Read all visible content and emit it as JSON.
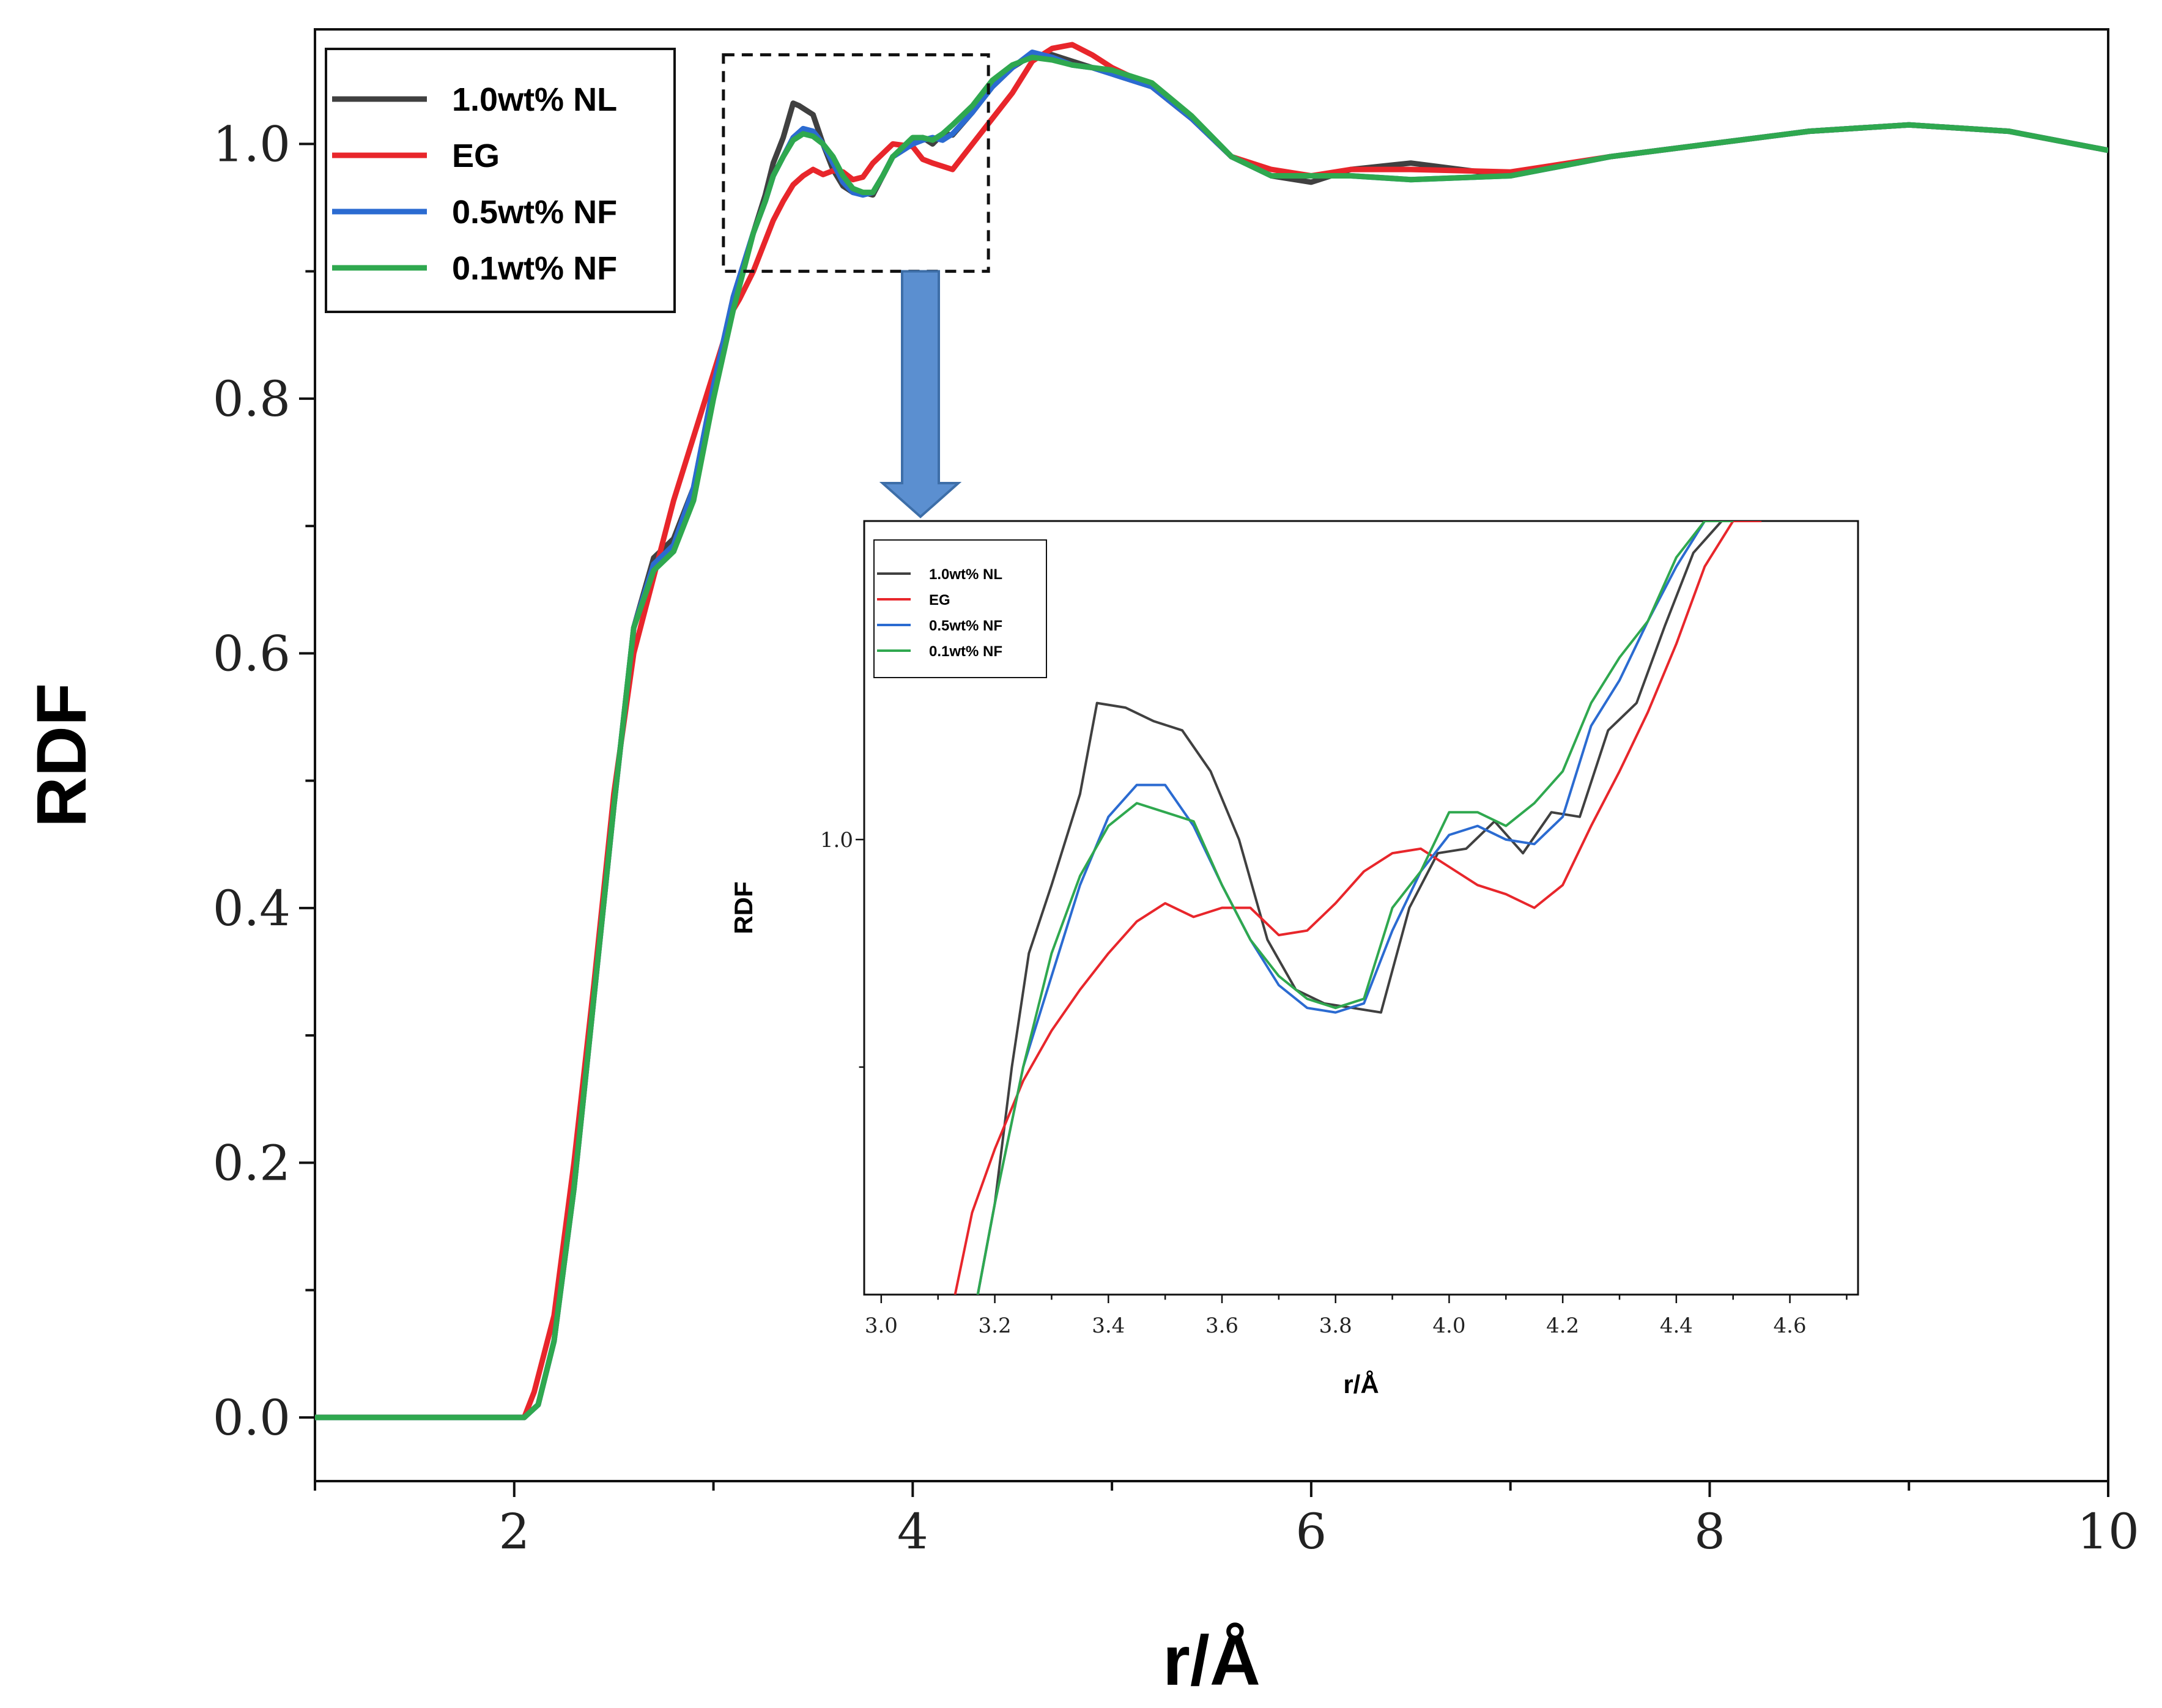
{
  "chart_data": [
    {
      "type": "line",
      "name": "main",
      "xlabel": "r/Å",
      "ylabel": "RDF",
      "xlim": [
        1,
        10
      ],
      "ylim": [
        -0.05,
        1.09
      ],
      "xticks": [
        "2",
        "4",
        "6",
        "8",
        "10"
      ],
      "yticks": [
        "0.0",
        "0.2",
        "0.4",
        "0.6",
        "0.8",
        "1.0"
      ],
      "legend_position": "top-left",
      "zoom_box": {
        "x": [
          3.05,
          4.38
        ],
        "y": [
          0.9,
          1.07
        ]
      },
      "series": [
        {
          "name": "1.0wt% NL",
          "color": "#404040",
          "x": [
            1.0,
            2.0,
            2.05,
            2.12,
            2.2,
            2.3,
            2.4,
            2.5,
            2.6,
            2.7,
            2.8,
            2.9,
            3.0,
            3.1,
            3.2,
            3.26,
            3.3,
            3.35,
            3.4,
            3.43,
            3.5,
            3.55,
            3.6,
            3.65,
            3.7,
            3.75,
            3.8,
            3.85,
            3.9,
            4.0,
            4.05,
            4.1,
            4.15,
            4.2,
            4.3,
            4.4,
            4.5,
            4.6,
            4.7,
            4.8,
            4.9,
            5.0,
            5.2,
            5.4,
            5.6,
            5.8,
            6.0,
            6.2,
            6.5,
            7.0,
            7.5,
            8.0,
            8.5,
            9.0,
            9.5,
            10.0
          ],
          "y": [
            0.0,
            0.0,
            0.0,
            0.01,
            0.06,
            0.18,
            0.33,
            0.48,
            0.62,
            0.675,
            0.69,
            0.73,
            0.81,
            0.88,
            0.93,
            0.96,
            0.985,
            1.005,
            1.032,
            1.03,
            1.023,
            1.0,
            0.98,
            0.967,
            0.962,
            0.962,
            0.96,
            0.975,
            0.99,
            1.0,
            1.005,
            1.0,
            1.008,
            1.007,
            1.025,
            1.045,
            1.06,
            1.07,
            1.07,
            1.065,
            1.06,
            1.055,
            1.045,
            1.02,
            0.99,
            0.975,
            0.97,
            0.98,
            0.985,
            0.975,
            0.99,
            1.0,
            1.01,
            1.015,
            1.01,
            0.995
          ]
        },
        {
          "name": "EG",
          "color": "#e8262b",
          "x": [
            1.0,
            2.0,
            2.05,
            2.1,
            2.2,
            2.3,
            2.4,
            2.5,
            2.6,
            2.7,
            2.8,
            2.9,
            3.0,
            3.1,
            3.13,
            3.2,
            3.25,
            3.3,
            3.35,
            3.4,
            3.45,
            3.5,
            3.55,
            3.6,
            3.65,
            3.7,
            3.75,
            3.8,
            3.9,
            4.0,
            4.05,
            4.1,
            4.2,
            4.25,
            4.3,
            4.4,
            4.5,
            4.6,
            4.7,
            4.8,
            4.9,
            5.0,
            5.2,
            5.4,
            5.6,
            5.8,
            6.0,
            6.2,
            6.5,
            7.0,
            7.5,
            8.0,
            8.5,
            9.0,
            9.5,
            10.0
          ],
          "y": [
            0.0,
            0.0,
            0.0,
            0.02,
            0.08,
            0.2,
            0.34,
            0.49,
            0.6,
            0.66,
            0.72,
            0.77,
            0.82,
            0.87,
            0.878,
            0.9,
            0.92,
            0.94,
            0.955,
            0.968,
            0.975,
            0.98,
            0.976,
            0.979,
            0.978,
            0.972,
            0.974,
            0.985,
            1.0,
            0.998,
            0.988,
            0.985,
            0.98,
            0.99,
            1.0,
            1.02,
            1.04,
            1.065,
            1.075,
            1.078,
            1.07,
            1.06,
            1.045,
            1.02,
            0.99,
            0.98,
            0.975,
            0.98,
            0.98,
            0.978,
            0.99,
            1.0,
            1.01,
            1.015,
            1.01,
            0.995
          ]
        },
        {
          "name": "0.5wt% NF",
          "color": "#2b6bd1",
          "x": [
            1.0,
            2.0,
            2.05,
            2.12,
            2.2,
            2.3,
            2.4,
            2.5,
            2.6,
            2.7,
            2.8,
            2.9,
            3.0,
            3.1,
            3.2,
            3.26,
            3.3,
            3.35,
            3.4,
            3.45,
            3.5,
            3.55,
            3.6,
            3.65,
            3.7,
            3.75,
            3.8,
            3.85,
            3.9,
            4.0,
            4.05,
            4.1,
            4.15,
            4.2,
            4.3,
            4.4,
            4.5,
            4.6,
            4.7,
            4.8,
            4.9,
            5.0,
            5.2,
            5.4,
            5.6,
            5.8,
            6.0,
            6.2,
            6.5,
            7.0,
            7.5,
            8.0,
            8.5,
            9.0,
            9.5,
            10.0
          ],
          "y": [
            0.0,
            0.0,
            0.0,
            0.01,
            0.06,
            0.18,
            0.33,
            0.48,
            0.62,
            0.67,
            0.685,
            0.73,
            0.81,
            0.88,
            0.93,
            0.955,
            0.975,
            0.99,
            1.005,
            1.012,
            1.01,
            1.0,
            0.985,
            0.97,
            0.962,
            0.96,
            0.962,
            0.975,
            0.99,
            1.0,
            1.003,
            1.005,
            1.003,
            1.008,
            1.025,
            1.045,
            1.06,
            1.072,
            1.068,
            1.062,
            1.06,
            1.055,
            1.045,
            1.02,
            0.99,
            0.975,
            0.975,
            0.975,
            0.972,
            0.975,
            0.99,
            1.0,
            1.01,
            1.015,
            1.01,
            0.995
          ]
        },
        {
          "name": "0.1wt% NF",
          "color": "#2fa84f",
          "x": [
            1.0,
            2.0,
            2.05,
            2.12,
            2.2,
            2.3,
            2.4,
            2.5,
            2.6,
            2.7,
            2.8,
            2.9,
            3.0,
            3.1,
            3.2,
            3.26,
            3.3,
            3.35,
            3.4,
            3.45,
            3.5,
            3.55,
            3.6,
            3.65,
            3.7,
            3.75,
            3.8,
            3.85,
            3.9,
            4.0,
            4.05,
            4.1,
            4.15,
            4.2,
            4.3,
            4.4,
            4.5,
            4.6,
            4.7,
            4.8,
            4.9,
            5.0,
            5.2,
            5.4,
            5.6,
            5.8,
            6.0,
            6.2,
            6.5,
            7.0,
            7.5,
            8.0,
            8.5,
            9.0,
            9.5,
            10.0
          ],
          "y": [
            0.0,
            0.0,
            0.0,
            0.01,
            0.06,
            0.18,
            0.33,
            0.48,
            0.62,
            0.665,
            0.68,
            0.72,
            0.8,
            0.87,
            0.93,
            0.955,
            0.975,
            0.99,
            1.003,
            1.008,
            1.006,
            1.0,
            0.99,
            0.975,
            0.965,
            0.962,
            0.962,
            0.975,
            0.99,
            1.005,
            1.005,
            1.003,
            1.008,
            1.015,
            1.03,
            1.05,
            1.062,
            1.068,
            1.066,
            1.062,
            1.06,
            1.058,
            1.048,
            1.022,
            0.99,
            0.975,
            0.975,
            0.975,
            0.972,
            0.975,
            0.99,
            1.0,
            1.01,
            1.015,
            1.01,
            0.995
          ]
        }
      ]
    },
    {
      "type": "line",
      "name": "inset",
      "xlabel": "r/Å",
      "ylabel": "RDF",
      "xlim": [
        2.97,
        4.72
      ],
      "ylim": [
        0.9,
        1.07
      ],
      "xticks": [
        "3.0",
        "3.2",
        "3.4",
        "3.6",
        "3.8",
        "4.0",
        "4.2",
        "4.4",
        "4.6"
      ],
      "yticks": [
        "1.0"
      ],
      "legend_position": "top-left",
      "series": [
        {
          "name": "1.0wt% NL",
          "color": "#404040",
          "x": [
            3.17,
            3.2,
            3.23,
            3.26,
            3.3,
            3.35,
            3.38,
            3.43,
            3.48,
            3.53,
            3.58,
            3.63,
            3.68,
            3.73,
            3.78,
            3.83,
            3.88,
            3.93,
            3.98,
            4.03,
            4.08,
            4.13,
            4.18,
            4.23,
            4.28,
            4.33,
            4.38,
            4.43,
            4.48
          ],
          "y": [
            0.9,
            0.92,
            0.95,
            0.975,
            0.99,
            1.01,
            1.03,
            1.029,
            1.026,
            1.024,
            1.015,
            1.0,
            0.978,
            0.967,
            0.964,
            0.963,
            0.962,
            0.985,
            0.997,
            0.998,
            1.004,
            0.997,
            1.006,
            1.005,
            1.024,
            1.03,
            1.047,
            1.063,
            1.07
          ]
        },
        {
          "name": "EG",
          "color": "#e8262b",
          "x": [
            3.13,
            3.16,
            3.2,
            3.25,
            3.3,
            3.35,
            3.4,
            3.45,
            3.5,
            3.55,
            3.6,
            3.65,
            3.7,
            3.75,
            3.8,
            3.85,
            3.9,
            3.95,
            4.0,
            4.05,
            4.1,
            4.15,
            4.2,
            4.25,
            4.3,
            4.35,
            4.4,
            4.45,
            4.5,
            4.55
          ],
          "y": [
            0.9,
            0.918,
            0.932,
            0.947,
            0.958,
            0.967,
            0.975,
            0.982,
            0.986,
            0.983,
            0.985,
            0.985,
            0.979,
            0.98,
            0.986,
            0.993,
            0.997,
            0.998,
            0.994,
            0.99,
            0.988,
            0.985,
            0.99,
            1.003,
            1.015,
            1.028,
            1.043,
            1.06,
            1.07,
            1.07
          ]
        },
        {
          "name": "0.5wt% NF",
          "color": "#2b6bd1",
          "x": [
            3.17,
            3.2,
            3.25,
            3.3,
            3.35,
            3.4,
            3.45,
            3.5,
            3.55,
            3.6,
            3.65,
            3.7,
            3.75,
            3.8,
            3.85,
            3.9,
            3.95,
            4.0,
            4.05,
            4.1,
            4.15,
            4.2,
            4.25,
            4.3,
            4.35,
            4.4,
            4.45,
            4.5
          ],
          "y": [
            0.9,
            0.92,
            0.95,
            0.97,
            0.99,
            1.005,
            1.012,
            1.012,
            1.003,
            0.99,
            0.978,
            0.968,
            0.963,
            0.962,
            0.964,
            0.98,
            0.993,
            1.001,
            1.003,
            1.0,
            0.999,
            1.005,
            1.025,
            1.035,
            1.048,
            1.06,
            1.07,
            1.07
          ]
        },
        {
          "name": "0.1wt% NF",
          "color": "#2fa84f",
          "x": [
            3.17,
            3.2,
            3.25,
            3.3,
            3.35,
            3.4,
            3.45,
            3.5,
            3.55,
            3.6,
            3.65,
            3.7,
            3.75,
            3.8,
            3.85,
            3.9,
            3.95,
            4.0,
            4.05,
            4.1,
            4.15,
            4.2,
            4.25,
            4.3,
            4.35,
            4.4,
            4.45,
            4.5
          ],
          "y": [
            0.9,
            0.92,
            0.95,
            0.975,
            0.992,
            1.003,
            1.008,
            1.006,
            1.004,
            0.99,
            0.978,
            0.97,
            0.965,
            0.963,
            0.965,
            0.985,
            0.993,
            1.006,
            1.006,
            1.003,
            1.008,
            1.015,
            1.03,
            1.04,
            1.048,
            1.062,
            1.07,
            1.07
          ]
        }
      ]
    }
  ]
}
